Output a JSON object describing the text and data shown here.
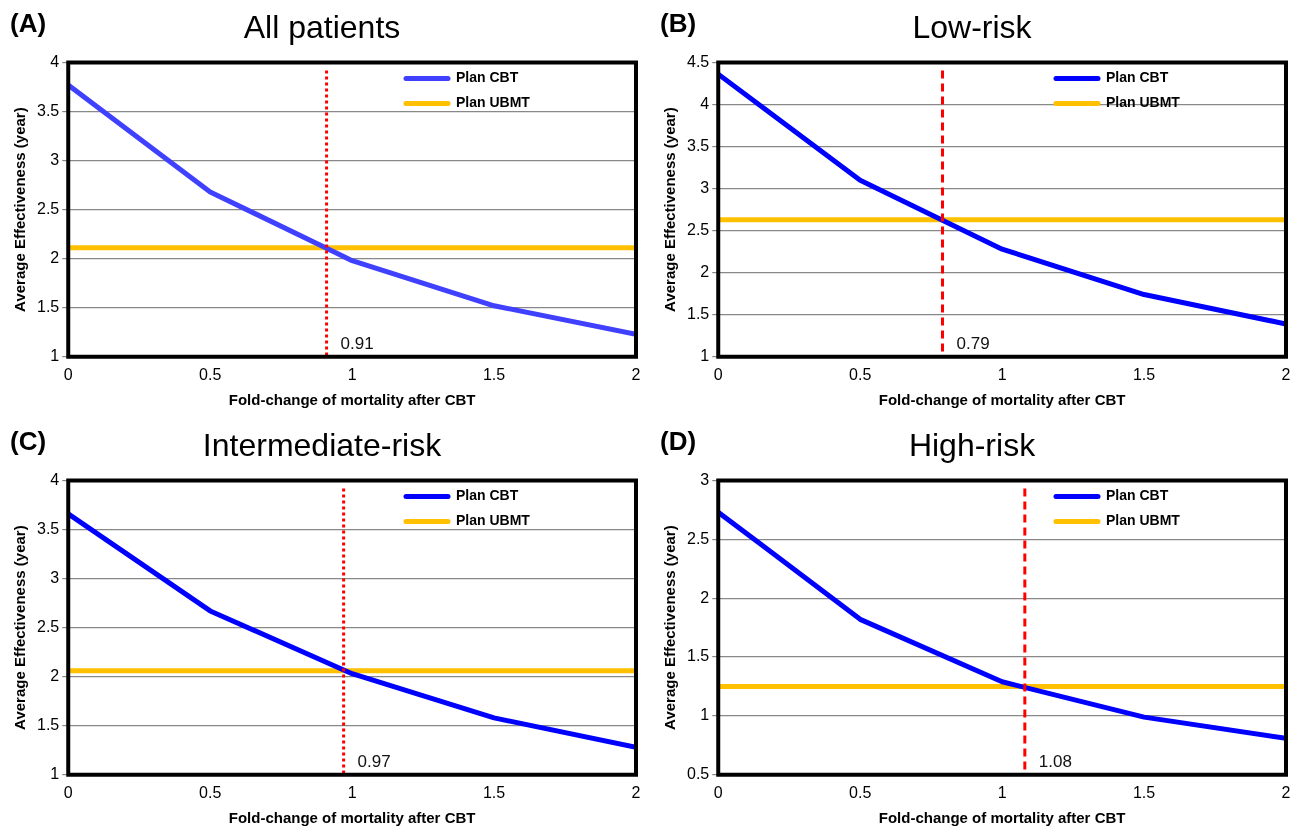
{
  "chart_data": [
    {
      "type": "line",
      "title": "All patients",
      "annotations": [
        "(A)"
      ],
      "xlabel": "Fold-change of mortality after CBT",
      "ylabel": "Average Effectiveness (year)",
      "xlim": [
        0,
        2
      ],
      "xticks": [
        0,
        0.5,
        1,
        1.5,
        2
      ],
      "ylim": [
        1,
        4
      ],
      "yticks": [
        1,
        1.5,
        2,
        2.5,
        3,
        3.5,
        4
      ],
      "grid": "y",
      "legend": "top right",
      "marker": "none",
      "series": [
        {
          "name": "Plan CBT",
          "color": "#4040ff",
          "x": [
            0,
            0.5,
            1,
            1.5,
            2
          ],
          "values": [
            3.77,
            2.68,
            1.98,
            1.52,
            1.23
          ]
        },
        {
          "name": "Plan UBMT",
          "color": "#ffc000",
          "x": [
            0,
            2
          ],
          "values": [
            2.11,
            2.11
          ]
        }
      ],
      "ref_lines": [
        {
          "axis": "x",
          "value": 0.91,
          "label": "0.91",
          "color": "#ff0000",
          "line_style": "dotted"
        }
      ]
    },
    {
      "type": "line",
      "title": "Low-risk",
      "annotations": [
        "(B)"
      ],
      "xlabel": "Fold-change of mortality after CBT",
      "ylabel": "Average Effectiveness (year)",
      "xlim": [
        0,
        2
      ],
      "xticks": [
        0,
        0.5,
        1,
        1.5,
        2
      ],
      "ylim": [
        1,
        4.5
      ],
      "yticks": [
        1,
        1.5,
        2,
        2.5,
        3,
        3.5,
        4,
        4.5
      ],
      "grid": "y",
      "legend": "top right",
      "marker": "none",
      "series": [
        {
          "name": "Plan CBT",
          "color": "#0000ff",
          "x": [
            0,
            0.5,
            1,
            1.5,
            2
          ],
          "values": [
            4.36,
            3.1,
            2.28,
            1.74,
            1.39
          ]
        },
        {
          "name": "Plan UBMT",
          "color": "#ffc000",
          "x": [
            0,
            2
          ],
          "values": [
            2.63,
            2.63
          ]
        }
      ],
      "ref_lines": [
        {
          "axis": "x",
          "value": 0.79,
          "label": "0.79",
          "color": "#ff0000",
          "line_style": "dashed"
        }
      ]
    },
    {
      "type": "line",
      "title": "Intermediate-risk",
      "annotations": [
        "(C)"
      ],
      "xlabel": "Fold-change of mortality after CBT",
      "ylabel": "Average Effectiveness (year)",
      "xlim": [
        0,
        2
      ],
      "xticks": [
        0,
        0.5,
        1,
        1.5,
        2
      ],
      "ylim": [
        1,
        4
      ],
      "yticks": [
        1,
        1.5,
        2,
        2.5,
        3,
        3.5,
        4
      ],
      "grid": "y",
      "legend": "top right",
      "marker": "none",
      "series": [
        {
          "name": "Plan CBT",
          "color": "#0000ff",
          "x": [
            0,
            0.5,
            1,
            1.5,
            2
          ],
          "values": [
            3.66,
            2.67,
            2.03,
            1.58,
            1.28
          ]
        },
        {
          "name": "Plan UBMT",
          "color": "#ffc000",
          "x": [
            0,
            2
          ],
          "values": [
            2.06,
            2.06
          ]
        }
      ],
      "ref_lines": [
        {
          "axis": "x",
          "value": 0.97,
          "label": "0.97",
          "color": "#ff0000",
          "line_style": "dotted"
        }
      ]
    },
    {
      "type": "line",
      "title": "High-risk",
      "annotations": [
        "(D)"
      ],
      "xlabel": "Fold-change of mortality after CBT",
      "ylabel": "Average Effectiveness (year)",
      "xlim": [
        0,
        2
      ],
      "xticks": [
        0,
        0.5,
        1,
        1.5,
        2
      ],
      "ylim": [
        0.5,
        3
      ],
      "yticks": [
        0.5,
        1,
        1.5,
        2,
        2.5,
        3
      ],
      "grid": "y",
      "legend": "top right",
      "marker": "none",
      "series": [
        {
          "name": "Plan CBT",
          "color": "#0000ff",
          "x": [
            0,
            0.5,
            1,
            1.5,
            2
          ],
          "values": [
            2.73,
            1.82,
            1.29,
            0.99,
            0.81
          ]
        },
        {
          "name": "Plan UBMT",
          "color": "#ffc000",
          "x": [
            0,
            2
          ],
          "values": [
            1.25,
            1.25
          ]
        }
      ],
      "ref_lines": [
        {
          "axis": "x",
          "value": 1.08,
          "label": "1.08",
          "color": "#ff0000",
          "line_style": "dashed"
        }
      ]
    }
  ]
}
